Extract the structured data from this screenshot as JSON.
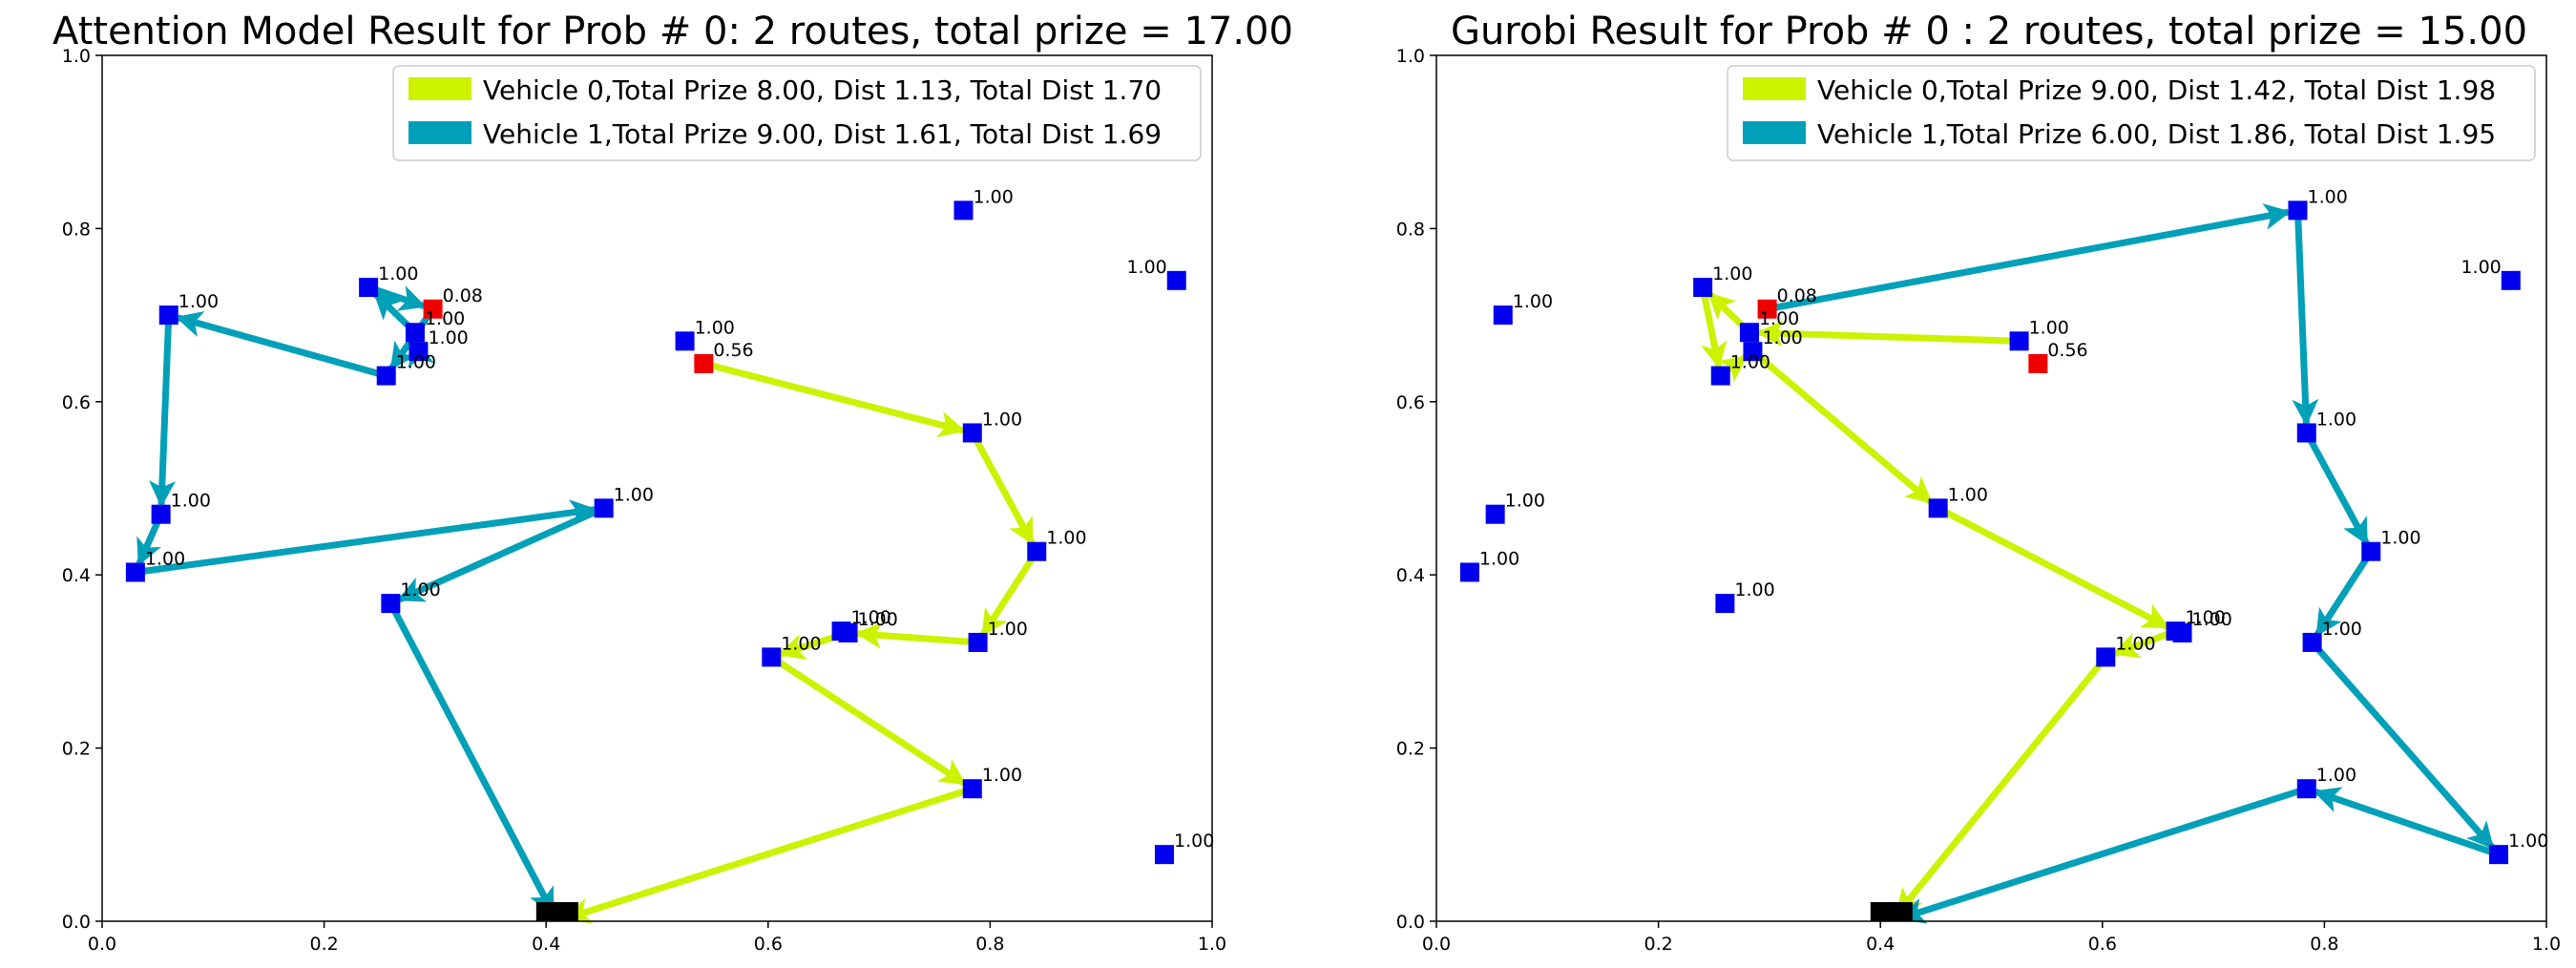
{
  "colors": {
    "vehicle0": "#ccf200",
    "vehicle1": "#00a0b8",
    "node": "#0000ee",
    "depot": "#000000",
    "partial": "#ee0000"
  },
  "chart_data": [
    {
      "type": "scatter",
      "title": "Attention Model Result for Prob # 0: 2 routes, total prize = 17.00",
      "xlim": [
        0,
        1
      ],
      "ylim": [
        0,
        1
      ],
      "xticks": [
        "0.0",
        "0.2",
        "0.4",
        "0.6",
        "0.8",
        "1.0"
      ],
      "yticks": [
        "0.0",
        "0.2",
        "0.4",
        "0.6",
        "0.8",
        "1.0"
      ],
      "legend_position": "top-right",
      "legend": [
        {
          "label": "Vehicle 0,Total Prize 8.00, Dist 1.13, Total Dist 1.70",
          "color": "#ccf200"
        },
        {
          "label": "Vehicle 1,Total Prize 9.00, Dist 1.61, Total Dist 1.69",
          "color": "#00a0b8"
        }
      ],
      "depot": {
        "x": 0.41,
        "y": 0.0
      },
      "nodes": [
        {
          "x": 0.24,
          "y": 0.732,
          "label": "1.00",
          "kind": "node"
        },
        {
          "x": 0.298,
          "y": 0.707,
          "label": "0.08",
          "kind": "partial"
        },
        {
          "x": 0.282,
          "y": 0.68,
          "label": "1.00",
          "kind": "node"
        },
        {
          "x": 0.285,
          "y": 0.658,
          "label": "1.00",
          "kind": "node"
        },
        {
          "x": 0.256,
          "y": 0.63,
          "label": "1.00",
          "kind": "node"
        },
        {
          "x": 0.06,
          "y": 0.7,
          "label": "1.00",
          "kind": "node"
        },
        {
          "x": 0.053,
          "y": 0.47,
          "label": "1.00",
          "kind": "node"
        },
        {
          "x": 0.03,
          "y": 0.403,
          "label": "1.00",
          "kind": "node"
        },
        {
          "x": 0.26,
          "y": 0.367,
          "label": "1.00",
          "kind": "node"
        },
        {
          "x": 0.452,
          "y": 0.477,
          "label": "1.00",
          "kind": "node"
        },
        {
          "x": 0.525,
          "y": 0.67,
          "label": "1.00",
          "kind": "node"
        },
        {
          "x": 0.542,
          "y": 0.644,
          "label": "0.56",
          "kind": "partial"
        },
        {
          "x": 0.784,
          "y": 0.564,
          "label": "1.00",
          "kind": "node"
        },
        {
          "x": 0.842,
          "y": 0.427,
          "label": "1.00",
          "kind": "node"
        },
        {
          "x": 0.789,
          "y": 0.322,
          "label": "1.00",
          "kind": "node"
        },
        {
          "x": 0.666,
          "y": 0.335,
          "label": "1.00",
          "kind": "node"
        },
        {
          "x": 0.672,
          "y": 0.333,
          "label": "1.00",
          "kind": "node"
        },
        {
          "x": 0.603,
          "y": 0.305,
          "label": "1.00",
          "kind": "node"
        },
        {
          "x": 0.784,
          "y": 0.153,
          "label": "1.00",
          "kind": "node"
        },
        {
          "x": 0.776,
          "y": 0.821,
          "label": "1.00",
          "kind": "node"
        },
        {
          "x": 0.968,
          "y": 0.74,
          "label": "1.00",
          "kind": "node",
          "label_left": true
        },
        {
          "x": 0.957,
          "y": 0.077,
          "label": "1.00",
          "kind": "node"
        }
      ],
      "routes": [
        {
          "vehicle": 0,
          "path": [
            [
              0.542,
              0.644
            ],
            [
              0.784,
              0.564
            ],
            [
              0.842,
              0.427
            ],
            [
              0.789,
              0.322
            ],
            [
              0.672,
              0.333
            ],
            [
              0.603,
              0.305
            ],
            [
              0.784,
              0.153
            ],
            [
              0.41,
              0.0
            ]
          ]
        },
        {
          "vehicle": 1,
          "path": [
            [
              0.256,
              0.63
            ],
            [
              0.06,
              0.7
            ],
            [
              0.053,
              0.47
            ],
            [
              0.03,
              0.403
            ],
            [
              0.452,
              0.477
            ],
            [
              0.26,
              0.367
            ],
            [
              0.41,
              0.0
            ]
          ]
        },
        {
          "vehicle": 1,
          "path": [
            [
              0.285,
              0.658
            ],
            [
              0.282,
              0.68
            ],
            [
              0.24,
              0.732
            ],
            [
              0.298,
              0.707
            ],
            [
              0.256,
              0.63
            ]
          ]
        }
      ]
    },
    {
      "type": "scatter",
      "title": "Gurobi Result for Prob # 0 : 2 routes, total prize = 15.00",
      "xlim": [
        0,
        1
      ],
      "ylim": [
        0,
        1
      ],
      "xticks": [
        "0.0",
        "0.2",
        "0.4",
        "0.6",
        "0.8",
        "1.0"
      ],
      "yticks": [
        "0.0",
        "0.2",
        "0.4",
        "0.6",
        "0.8",
        "1.0"
      ],
      "legend_position": "top-right",
      "legend": [
        {
          "label": "Vehicle 0,Total Prize 9.00, Dist 1.42, Total Dist 1.98",
          "color": "#ccf200"
        },
        {
          "label": "Vehicle 1,Total Prize 6.00, Dist 1.86, Total Dist 1.95",
          "color": "#00a0b8"
        }
      ],
      "depot": {
        "x": 0.41,
        "y": 0.0
      },
      "nodes": [
        {
          "x": 0.24,
          "y": 0.732,
          "label": "1.00",
          "kind": "node"
        },
        {
          "x": 0.298,
          "y": 0.707,
          "label": "0.08",
          "kind": "partial"
        },
        {
          "x": 0.282,
          "y": 0.68,
          "label": "1.00",
          "kind": "node"
        },
        {
          "x": 0.285,
          "y": 0.658,
          "label": "1.00",
          "kind": "node"
        },
        {
          "x": 0.256,
          "y": 0.63,
          "label": "1.00",
          "kind": "node"
        },
        {
          "x": 0.06,
          "y": 0.7,
          "label": "1.00",
          "kind": "node"
        },
        {
          "x": 0.053,
          "y": 0.47,
          "label": "1.00",
          "kind": "node"
        },
        {
          "x": 0.03,
          "y": 0.403,
          "label": "1.00",
          "kind": "node"
        },
        {
          "x": 0.26,
          "y": 0.367,
          "label": "1.00",
          "kind": "node"
        },
        {
          "x": 0.452,
          "y": 0.477,
          "label": "1.00",
          "kind": "node"
        },
        {
          "x": 0.525,
          "y": 0.67,
          "label": "1.00",
          "kind": "node"
        },
        {
          "x": 0.542,
          "y": 0.644,
          "label": "0.56",
          "kind": "partial"
        },
        {
          "x": 0.784,
          "y": 0.564,
          "label": "1.00",
          "kind": "node"
        },
        {
          "x": 0.842,
          "y": 0.427,
          "label": "1.00",
          "kind": "node"
        },
        {
          "x": 0.789,
          "y": 0.322,
          "label": "1.00",
          "kind": "node"
        },
        {
          "x": 0.666,
          "y": 0.335,
          "label": "1.00",
          "kind": "node"
        },
        {
          "x": 0.672,
          "y": 0.333,
          "label": "1.00",
          "kind": "node"
        },
        {
          "x": 0.603,
          "y": 0.305,
          "label": "1.00",
          "kind": "node"
        },
        {
          "x": 0.784,
          "y": 0.153,
          "label": "1.00",
          "kind": "node"
        },
        {
          "x": 0.776,
          "y": 0.821,
          "label": "1.00",
          "kind": "node"
        },
        {
          "x": 0.968,
          "y": 0.74,
          "label": "1.00",
          "kind": "node",
          "label_left": true
        },
        {
          "x": 0.957,
          "y": 0.077,
          "label": "1.00",
          "kind": "node"
        }
      ],
      "routes": [
        {
          "vehicle": 0,
          "path": [
            [
              0.525,
              0.67
            ],
            [
              0.282,
              0.68
            ],
            [
              0.24,
              0.732
            ],
            [
              0.256,
              0.63
            ],
            [
              0.285,
              0.658
            ],
            [
              0.452,
              0.477
            ],
            [
              0.666,
              0.335
            ],
            [
              0.603,
              0.305
            ],
            [
              0.41,
              0.0
            ]
          ]
        },
        {
          "vehicle": 1,
          "path": [
            [
              0.298,
              0.707
            ],
            [
              0.776,
              0.821
            ],
            [
              0.784,
              0.564
            ],
            [
              0.842,
              0.427
            ],
            [
              0.789,
              0.322
            ],
            [
              0.957,
              0.077
            ],
            [
              0.784,
              0.153
            ],
            [
              0.41,
              0.0
            ]
          ]
        }
      ]
    }
  ]
}
